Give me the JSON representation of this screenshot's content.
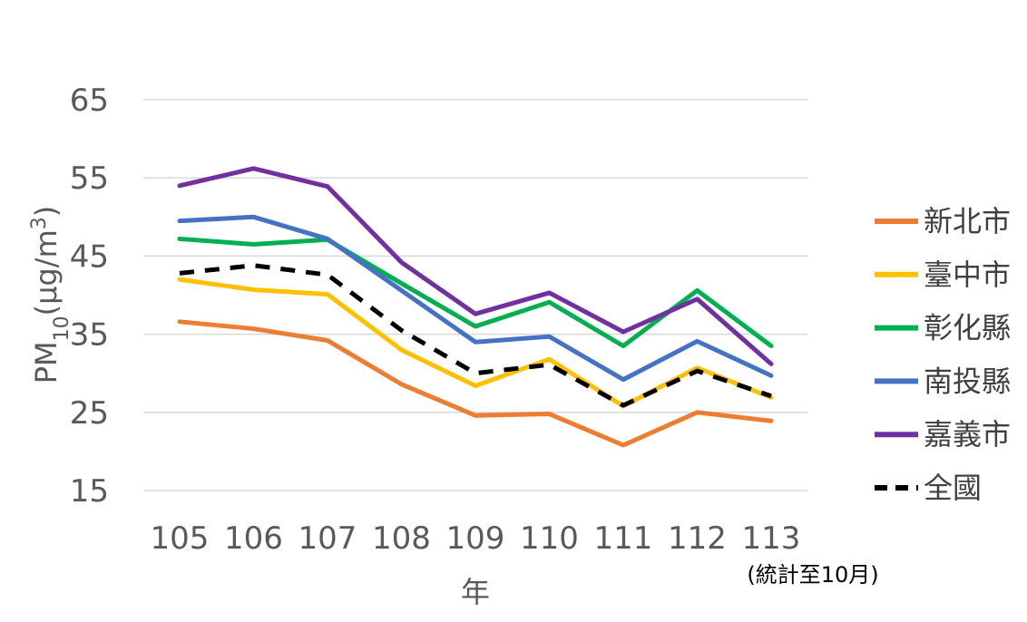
{
  "chart_data": {
    "type": "line",
    "title": "",
    "xlabel": "年",
    "ylabel": {
      "main": "PM",
      "sub": "10",
      "unit_open": "(µg/m",
      "sup": "3",
      "unit_close": ")"
    },
    "x_note": "(統計至10月)",
    "categories": [
      "105",
      "106",
      "107",
      "108",
      "109",
      "110",
      "111",
      "112",
      "113"
    ],
    "y_ticks": [
      "15",
      "25",
      "35",
      "45",
      "55",
      "65"
    ],
    "ylim": [
      15,
      65
    ],
    "grid": true,
    "legend_position": "right",
    "series": [
      {
        "name": "新北市",
        "color": "#ED7D31",
        "dashed": false,
        "values": [
          36.6,
          35.7,
          34.2,
          28.6,
          24.6,
          24.8,
          20.8,
          25.0,
          23.9
        ]
      },
      {
        "name": "臺中市",
        "color": "#FFC000",
        "dashed": false,
        "values": [
          42.0,
          40.7,
          40.1,
          33.0,
          28.4,
          31.8,
          25.8,
          30.7,
          26.9
        ]
      },
      {
        "name": "彰化縣",
        "color": "#00B050",
        "dashed": false,
        "values": [
          47.2,
          46.5,
          47.1,
          41.5,
          36.0,
          39.1,
          33.5,
          40.6,
          33.5
        ]
      },
      {
        "name": "南投縣",
        "color": "#4472C4",
        "dashed": false,
        "values": [
          49.5,
          50.0,
          47.2,
          40.6,
          34.0,
          34.7,
          29.2,
          34.1,
          29.7
        ]
      },
      {
        "name": "嘉義市",
        "color": "#7030A0",
        "dashed": false,
        "values": [
          54.0,
          56.2,
          53.9,
          44.2,
          37.6,
          40.3,
          35.3,
          39.5,
          31.2
        ]
      },
      {
        "name": "全國",
        "color": "#000000",
        "dashed": true,
        "values": [
          42.8,
          43.8,
          42.6,
          35.5,
          30.0,
          31.1,
          25.9,
          30.3,
          27.1
        ]
      }
    ]
  }
}
